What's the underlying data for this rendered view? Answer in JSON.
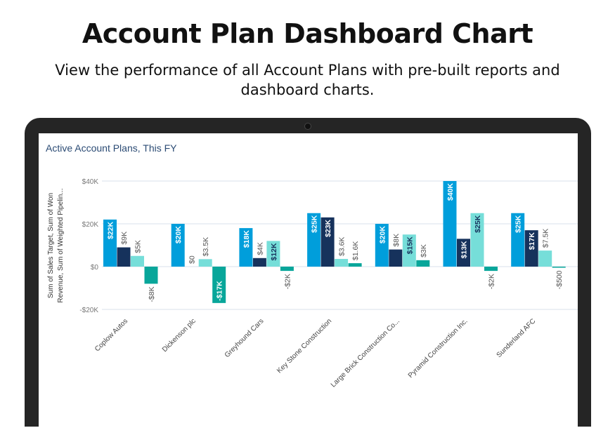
{
  "header": {
    "title": "Account Plan Dashboard Chart",
    "subtitle": "View the performance of all Account Plans with pre-built reports and dashboard charts."
  },
  "chart_data": {
    "type": "bar",
    "title": "Active Account Plans, This FY",
    "ylabel": "Sum of Sales Target, Sum of Won Revenue, Sum of Weighted Pipelin...",
    "xlabel": "",
    "ylim": [
      -20000,
      40000
    ],
    "yticks": [
      {
        "value": 40000,
        "label": "$40K"
      },
      {
        "value": 20000,
        "label": "$20K"
      },
      {
        "value": 0,
        "label": "$0"
      },
      {
        "value": -20000,
        "label": "-$20K"
      }
    ],
    "grid": true,
    "categories": [
      "Coplow Autos",
      "Dickenson plc",
      "Greyhound Cars",
      "Key Stone Construction",
      "Large Brick Construction Co...",
      "Pyramid Construction Inc.",
      "Sunderland AFC"
    ],
    "series": [
      {
        "color": "#009edb",
        "values": [
          22000,
          20000,
          18000,
          25000,
          20000,
          40000,
          25000
        ],
        "labels": [
          "$22K",
          "$20K",
          "$18K",
          "$25K",
          "$20K",
          "$40K",
          "$25K"
        ]
      },
      {
        "color": "#16325c",
        "values": [
          9000,
          0,
          4000,
          23000,
          8000,
          13000,
          17000
        ],
        "labels": [
          "$9K",
          "$0",
          "$4K",
          "$23K",
          "$8K",
          "$13K",
          "$17K"
        ]
      },
      {
        "color": "#76ded9",
        "values": [
          5000,
          3500,
          12000,
          3600,
          15000,
          25000,
          7500
        ],
        "labels": [
          "$5K",
          "$3.5K",
          "$12K",
          "$3.6K",
          "$15K",
          "$25K",
          "$7.5K"
        ]
      },
      {
        "color": "#08a69a",
        "values": [
          -8000,
          -17000,
          -2000,
          1600,
          3000,
          -2000,
          -500
        ],
        "labels": [
          "-$8K",
          "-$17K",
          "-$2K",
          "$1.6K",
          "$3K",
          "-$2K",
          "-$500"
        ]
      }
    ]
  }
}
